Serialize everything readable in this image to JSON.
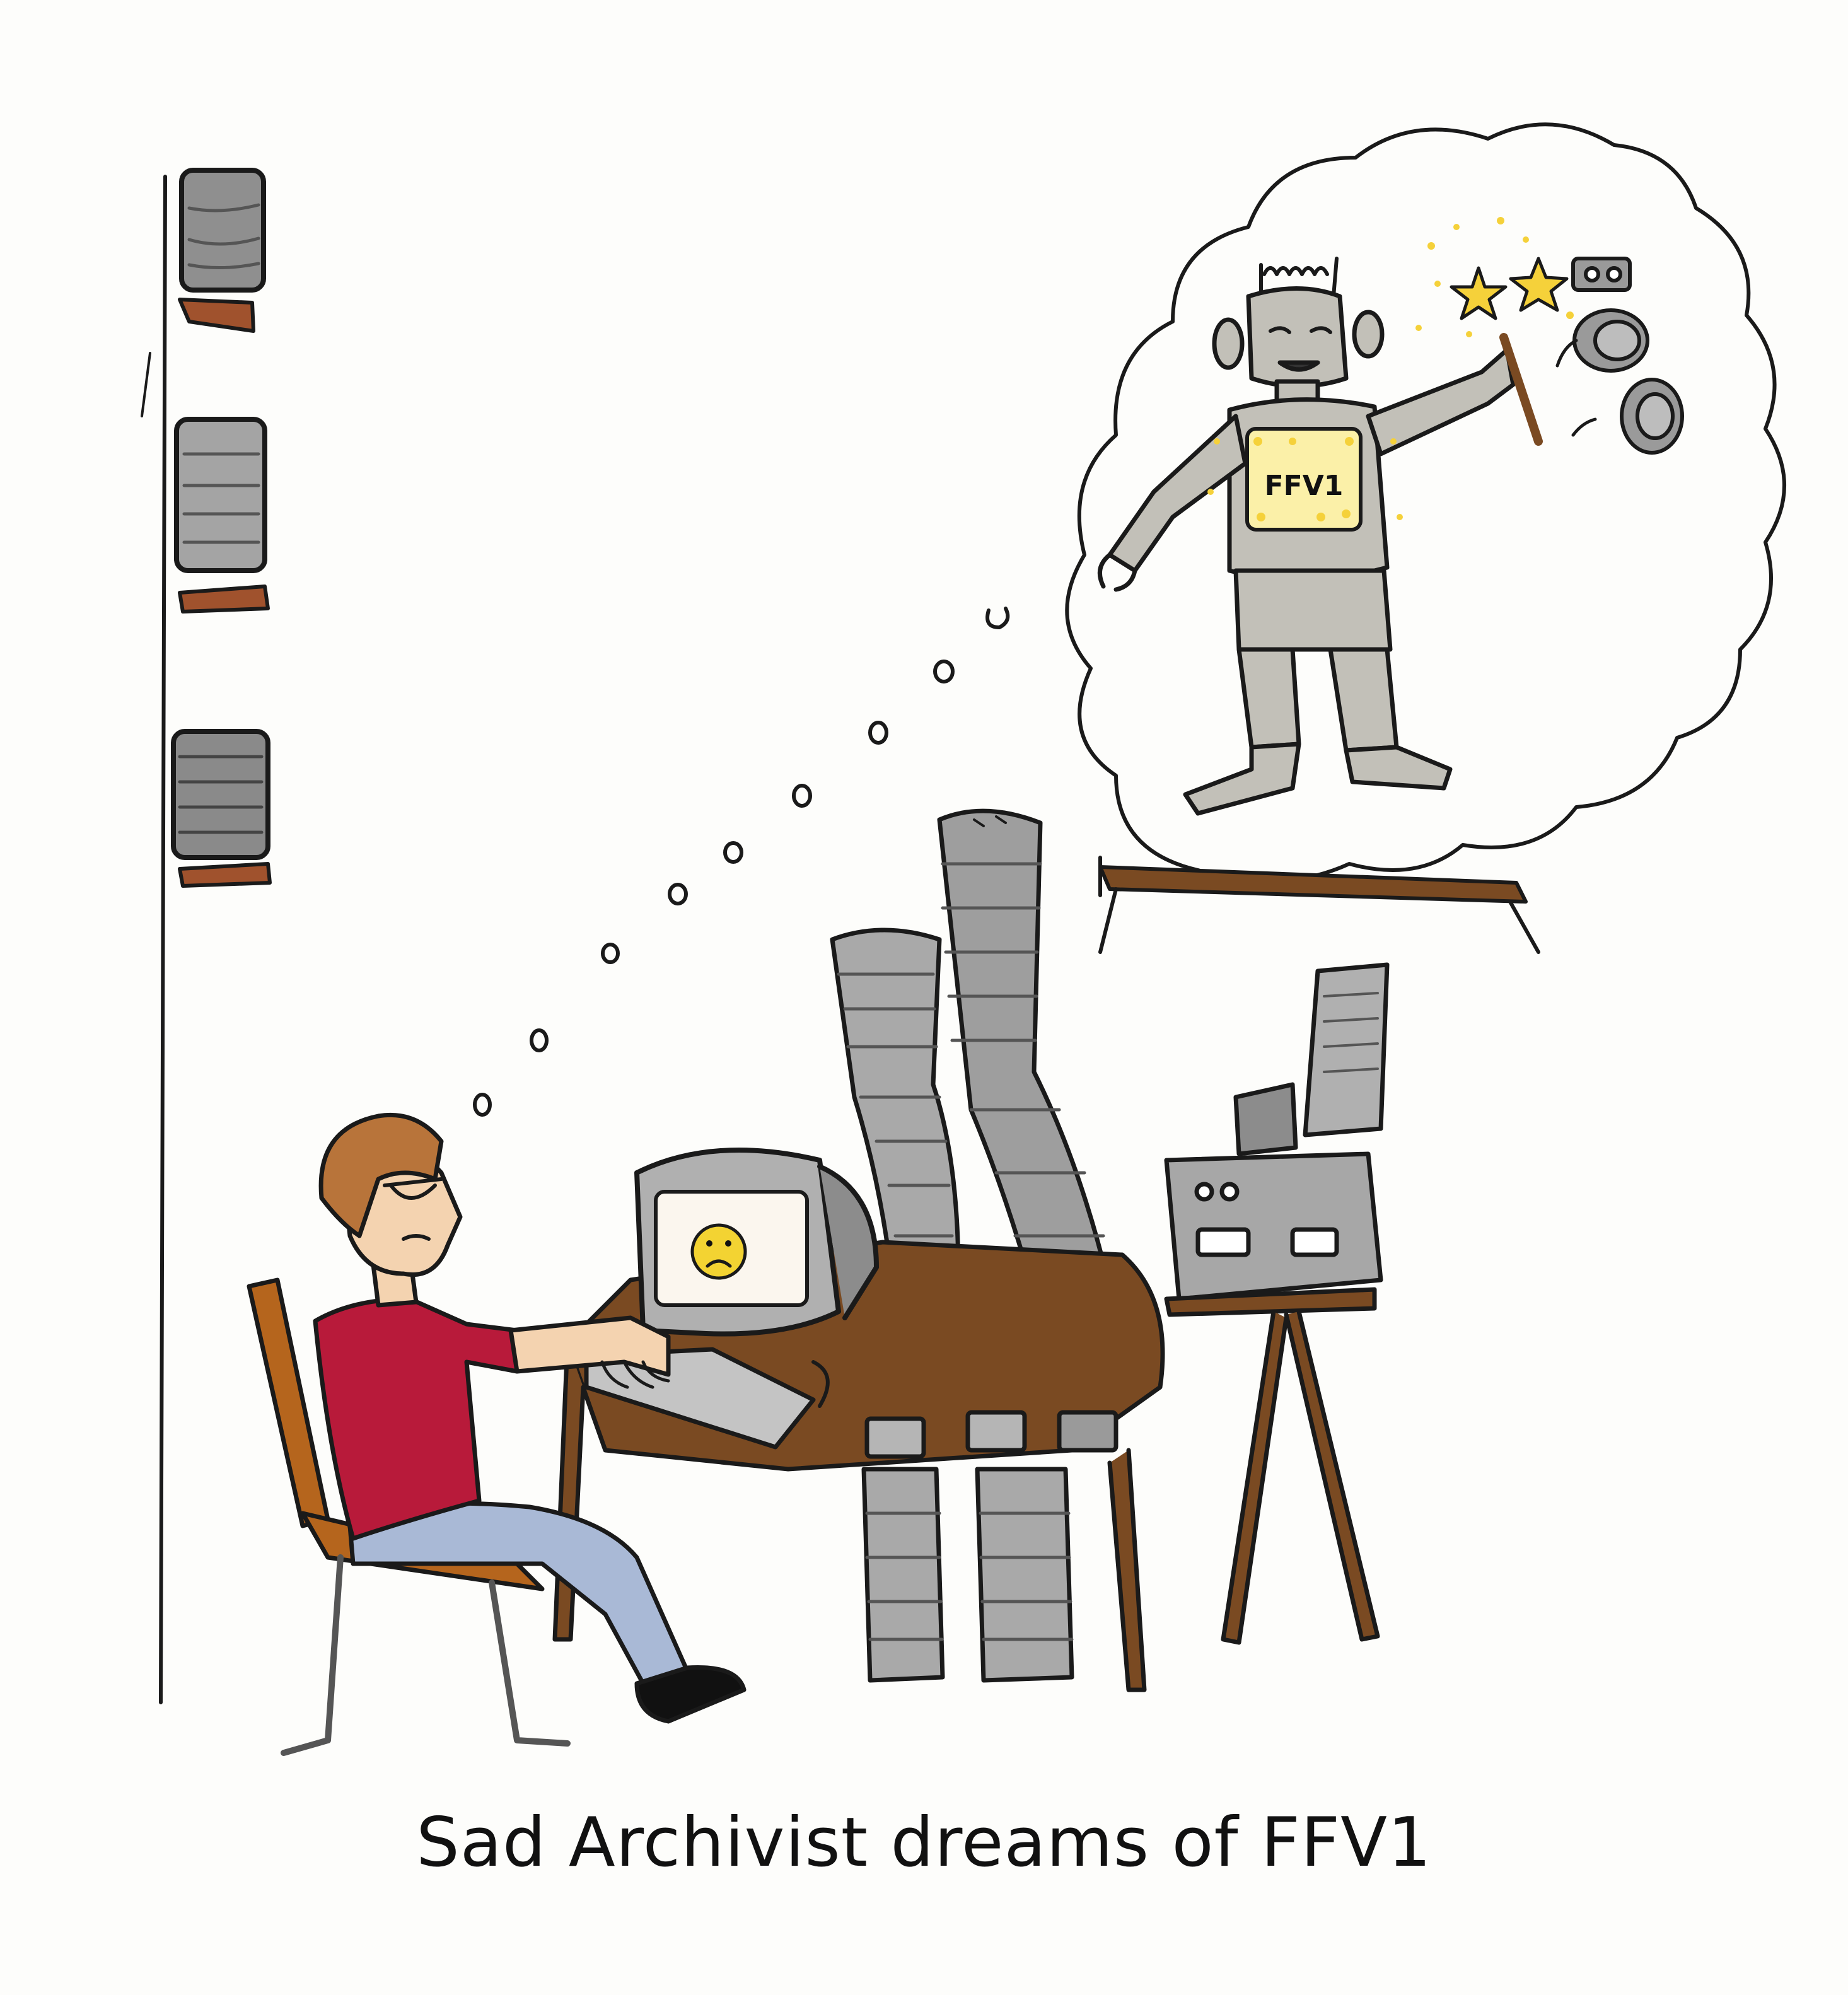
{
  "caption": "Sad Archivist dreams of FFV1",
  "robot_chest_label": "FFV1",
  "colors": {
    "background": "#fdfdfb",
    "ink": "#1a1a1a",
    "wood": "#7a4a22",
    "wood_light": "#b5651d",
    "shirt": "#b81a3a",
    "jeans": "#a9b9d6",
    "skin": "#f4d3b0",
    "hair": "#b8743a",
    "reel_gray": "#9a9a9a",
    "reel_dark": "#6e6e6e",
    "robot": "#c2c0b8",
    "chest_panel": "#fbf0a8",
    "star": "#f5d13a",
    "sad_face": "#f3d332"
  },
  "icons": [
    "sad-face-icon",
    "magic-wand-icon",
    "sparkle-star-icon",
    "film-reel-icon"
  ]
}
